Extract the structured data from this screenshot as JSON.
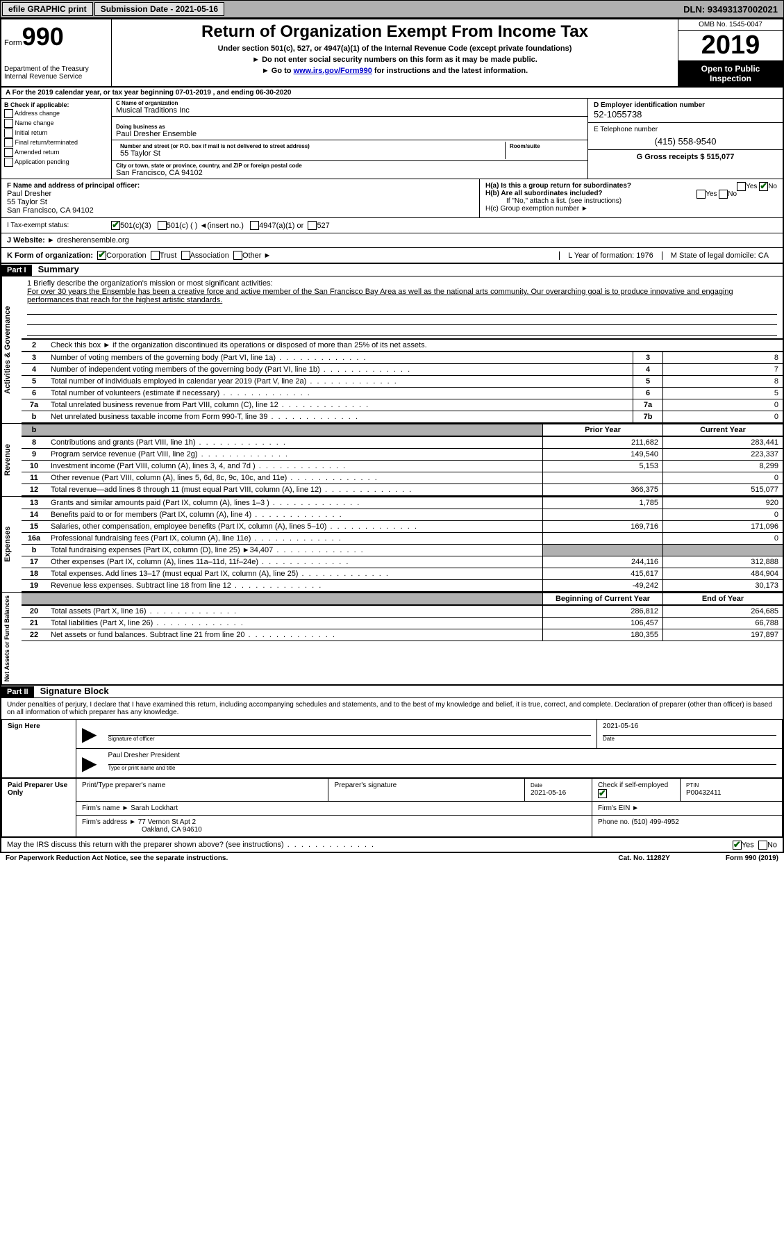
{
  "toolbar": {
    "efile": "efile GRAPHIC print",
    "submission": "Submission Date - 2021-05-16",
    "dln": "DLN: 93493137002021"
  },
  "header": {
    "form_label": "Form",
    "form_num": "990",
    "dept": "Department of the Treasury\nInternal Revenue Service",
    "title": "Return of Organization Exempt From Income Tax",
    "sub1": "Under section 501(c), 527, or 4947(a)(1) of the Internal Revenue Code (except private foundations)",
    "sub2": "► Do not enter social security numbers on this form as it may be made public.",
    "sub3_pre": "► Go to ",
    "sub3_link": "www.irs.gov/Form990",
    "sub3_post": " for instructions and the latest information.",
    "omb": "OMB No. 1545-0047",
    "year": "2019",
    "open": "Open to Public Inspection"
  },
  "row_a": "A For the 2019 calendar year, or tax year beginning 07-01-2019    , and ending 06-30-2020",
  "section_b": {
    "label": "B Check if applicable:",
    "opts": [
      "Address change",
      "Name change",
      "Initial return",
      "Final return/terminated",
      "Amended return",
      "Application pending"
    ]
  },
  "section_c": {
    "name_label": "C Name of organization",
    "name": "Musical Traditions Inc",
    "dba_label": "Doing business as",
    "dba": "Paul Dresher Ensemble",
    "street_label": "Number and street (or P.O. box if mail is not delivered to street address)",
    "room_label": "Room/suite",
    "street": "55 Taylor St",
    "city_label": "City or town, state or province, country, and ZIP or foreign postal code",
    "city": "San Francisco, CA  94102"
  },
  "section_d": {
    "ein_label": "D Employer identification number",
    "ein": "52-1055738",
    "phone_label": "E Telephone number",
    "phone": "(415) 558-9540",
    "gross_label": "G Gross receipts $ 515,077"
  },
  "section_f": {
    "label": "F  Name and address of principal officer:",
    "name": "Paul Dresher",
    "street": "55 Taylor St",
    "city": "San Francisco, CA  94102"
  },
  "section_h": {
    "ha": "H(a)  Is this a group return for subordinates?",
    "hb": "H(b)  Are all subordinates included?",
    "hb_note": "If \"No,\" attach a list. (see instructions)",
    "hc": "H(c)  Group exemption number ►",
    "yes": "Yes",
    "no": "No"
  },
  "status": {
    "label": "I  Tax-exempt status:",
    "o1": "501(c)(3)",
    "o2": "501(c) (  ) ◄(insert no.)",
    "o3": "4947(a)(1) or",
    "o4": "527"
  },
  "website": {
    "label": "J  Website: ►",
    "value": "dresherensemble.org"
  },
  "section_k": {
    "label": "K Form of organization:",
    "o1": "Corporation",
    "o2": "Trust",
    "o3": "Association",
    "o4": "Other ►",
    "l_label": "L Year of formation: 1976",
    "m_label": "M State of legal domicile: CA"
  },
  "part1": {
    "header": "Part I",
    "title": "Summary",
    "line1_label": "1  Briefly describe the organization's mission or most significant activities:",
    "mission": "For over 30 years the Ensemble has been a creative force and active member of the San Francisco Bay Area as well as the national arts community. Our overarching goal is to produce innovative and engaging performances that reach for the highest artistic standards.",
    "line2": "Check this box ►        if the organization discontinued its operations or disposed of more than 25% of its net assets.",
    "tabs": {
      "gov": "Activities & Governance",
      "rev": "Revenue",
      "exp": "Expenses",
      "net": "Net Assets or Fund Balances"
    },
    "gov_lines": [
      {
        "n": "3",
        "d": "Number of voting members of the governing body (Part VI, line 1a)",
        "b": "3",
        "v": "8"
      },
      {
        "n": "4",
        "d": "Number of independent voting members of the governing body (Part VI, line 1b)",
        "b": "4",
        "v": "7"
      },
      {
        "n": "5",
        "d": "Total number of individuals employed in calendar year 2019 (Part V, line 2a)",
        "b": "5",
        "v": "8"
      },
      {
        "n": "6",
        "d": "Total number of volunteers (estimate if necessary)",
        "b": "6",
        "v": "5"
      },
      {
        "n": "7a",
        "d": "Total unrelated business revenue from Part VIII, column (C), line 12",
        "b": "7a",
        "v": "0"
      },
      {
        "n": "b",
        "d": "Net unrelated business taxable income from Form 990-T, line 39",
        "b": "7b",
        "v": "0"
      }
    ],
    "col_headers": {
      "prior": "Prior Year",
      "current": "Current Year"
    },
    "rev_lines": [
      {
        "n": "8",
        "d": "Contributions and grants (Part VIII, line 1h)",
        "p": "211,682",
        "c": "283,441"
      },
      {
        "n": "9",
        "d": "Program service revenue (Part VIII, line 2g)",
        "p": "149,540",
        "c": "223,337"
      },
      {
        "n": "10",
        "d": "Investment income (Part VIII, column (A), lines 3, 4, and 7d )",
        "p": "5,153",
        "c": "8,299"
      },
      {
        "n": "11",
        "d": "Other revenue (Part VIII, column (A), lines 5, 6d, 8c, 9c, 10c, and 11e)",
        "p": "",
        "c": "0"
      },
      {
        "n": "12",
        "d": "Total revenue—add lines 8 through 11 (must equal Part VIII, column (A), line 12)",
        "p": "366,375",
        "c": "515,077"
      }
    ],
    "exp_lines": [
      {
        "n": "13",
        "d": "Grants and similar amounts paid (Part IX, column (A), lines 1–3 )",
        "p": "1,785",
        "c": "920"
      },
      {
        "n": "14",
        "d": "Benefits paid to or for members (Part IX, column (A), line 4)",
        "p": "",
        "c": "0"
      },
      {
        "n": "15",
        "d": "Salaries, other compensation, employee benefits (Part IX, column (A), lines 5–10)",
        "p": "169,716",
        "c": "171,096"
      },
      {
        "n": "16a",
        "d": "Professional fundraising fees (Part IX, column (A), line 11e)",
        "p": "",
        "c": "0"
      },
      {
        "n": "b",
        "d": "Total fundraising expenses (Part IX, column (D), line 25) ►34,407",
        "p": "grey",
        "c": "grey"
      },
      {
        "n": "17",
        "d": "Other expenses (Part IX, column (A), lines 11a–11d, 11f–24e)",
        "p": "244,116",
        "c": "312,888"
      },
      {
        "n": "18",
        "d": "Total expenses. Add lines 13–17 (must equal Part IX, column (A), line 25)",
        "p": "415,617",
        "c": "484,904"
      },
      {
        "n": "19",
        "d": "Revenue less expenses. Subtract line 18 from line 12",
        "p": "-49,242",
        "c": "30,173"
      }
    ],
    "net_headers": {
      "begin": "Beginning of Current Year",
      "end": "End of Year"
    },
    "net_lines": [
      {
        "n": "20",
        "d": "Total assets (Part X, line 16)",
        "p": "286,812",
        "c": "264,685"
      },
      {
        "n": "21",
        "d": "Total liabilities (Part X, line 26)",
        "p": "106,457",
        "c": "66,788"
      },
      {
        "n": "22",
        "d": "Net assets or fund balances. Subtract line 21 from line 20",
        "p": "180,355",
        "c": "197,897"
      }
    ]
  },
  "part2": {
    "header": "Part II",
    "title": "Signature Block",
    "declare": "Under penalties of perjury, I declare that I have examined this return, including accompanying schedules and statements, and to the best of my knowledge and belief, it is true, correct, and complete. Declaration of preparer (other than officer) is based on all information of which preparer has any knowledge.",
    "sign_here": "Sign Here",
    "sig_officer": "Signature of officer",
    "date": "Date",
    "date_val": "2021-05-16",
    "officer_name": "Paul Dresher President",
    "type_name": "Type or print name and title",
    "paid": "Paid Preparer Use Only",
    "prep_name_label": "Print/Type preparer's name",
    "prep_sig_label": "Preparer's signature",
    "prep_date": "2021-05-16",
    "check_self": "Check        if self-employed",
    "ptin_label": "PTIN",
    "ptin": "P00432411",
    "firm_name_label": "Firm's name    ►",
    "firm_name": "Sarah Lockhart",
    "firm_ein_label": "Firm's EIN ►",
    "firm_addr_label": "Firm's address ►",
    "firm_addr1": "77 Vernon St Apt 2",
    "firm_addr2": "Oakland, CA  94610",
    "firm_phone_label": "Phone no. (510) 499-4952",
    "discuss": "May the IRS discuss this return with the preparer shown above? (see instructions)"
  },
  "footer": {
    "left": "For Paperwork Reduction Act Notice, see the separate instructions.",
    "mid": "Cat. No. 11282Y",
    "right": "Form 990 (2019)"
  }
}
